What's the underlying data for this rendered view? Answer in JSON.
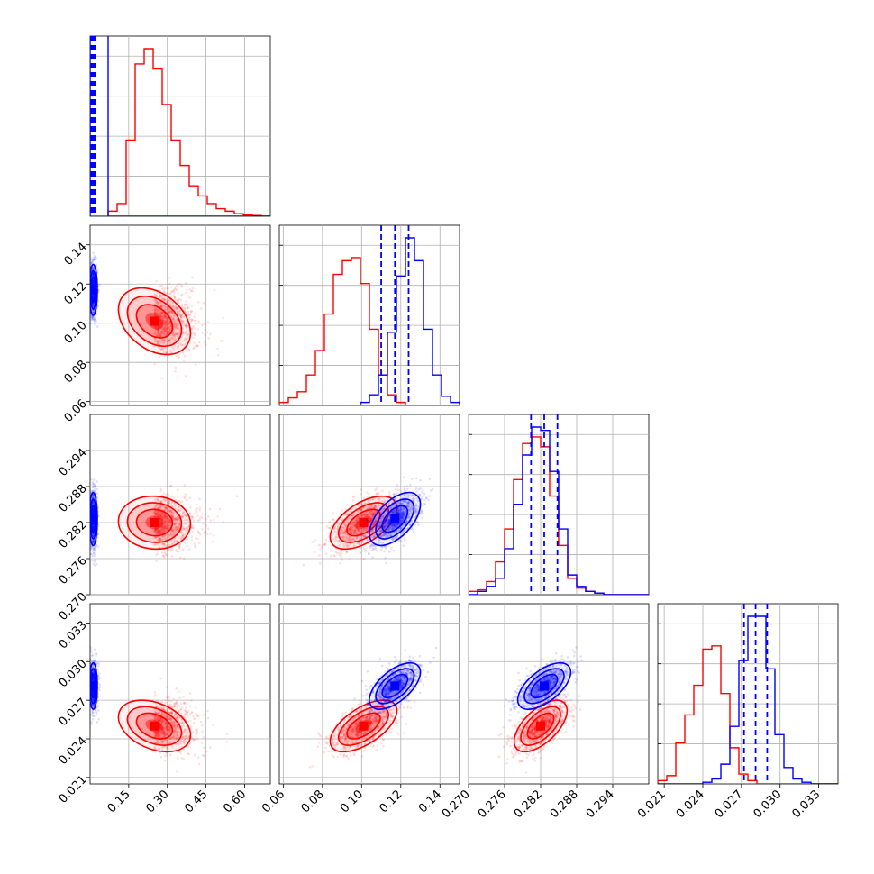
{
  "chart_data": {
    "type": "corner",
    "title": "",
    "parameters": [
      {
        "index": 0,
        "range": [
          0.0,
          0.7
        ],
        "ticks": [
          0.15,
          0.3,
          0.45,
          0.6
        ],
        "tick_labels": [
          "0.15",
          "0.30",
          "0.45",
          "0.60"
        ]
      },
      {
        "index": 1,
        "range": [
          0.058,
          0.15
        ],
        "ticks": [
          0.06,
          0.08,
          0.1,
          0.12,
          0.14
        ],
        "tick_labels": [
          "0.06",
          "0.08",
          "0.10",
          "0.12",
          "0.14"
        ]
      },
      {
        "index": 2,
        "range": [
          0.27,
          0.3
        ],
        "ticks": [
          0.27,
          0.276,
          0.282,
          0.288,
          0.294
        ],
        "tick_labels": [
          "0.270",
          "0.276",
          "0.282",
          "0.288",
          "0.294"
        ]
      },
      {
        "index": 3,
        "range": [
          0.0205,
          0.0345
        ],
        "ticks": [
          0.021,
          0.024,
          0.027,
          0.03,
          0.033
        ],
        "tick_labels": [
          "0.021",
          "0.024",
          "0.027",
          "0.030",
          "0.033"
        ]
      }
    ],
    "grid": true,
    "series": [
      {
        "color": "#ff0000",
        "means": [
          0.25,
          0.101,
          0.282,
          0.025
        ],
        "sigmas": [
          0.07,
          0.0085,
          0.0022,
          0.001
        ],
        "correlations": [
          [
            1,
            -0.35,
            -0.05,
            -0.35
          ],
          [
            -0.35,
            1,
            0.55,
            0.6
          ],
          [
            -0.05,
            0.55,
            1,
            0.6
          ],
          [
            -0.35,
            0.6,
            0.6,
            1
          ]
        ],
        "histograms": [
          {
            "bin_edges": [
              0.0,
              0.035,
              0.07,
              0.105,
              0.14,
              0.175,
              0.21,
              0.245,
              0.28,
              0.315,
              0.35,
              0.385,
              0.42,
              0.455,
              0.49,
              0.525,
              0.56,
              0.595,
              0.63,
              0.665,
              0.7
            ],
            "counts": [
              0,
              0,
              0.02,
              0.05,
              0.3,
              0.6,
              0.66,
              0.58,
              0.44,
              0.3,
              0.2,
              0.12,
              0.08,
              0.05,
              0.03,
              0.02,
              0.01,
              0.005,
              0.003,
              0.0
            ]
          },
          {
            "bin_edges": [
              0.058,
              0.0626,
              0.0672,
              0.0718,
              0.0764,
              0.081,
              0.0856,
              0.0902,
              0.0948,
              0.0994,
              0.104,
              0.1086,
              0.1132,
              0.1178,
              0.1224,
              0.127,
              0.1316,
              0.1362,
              0.1408,
              0.1454,
              0.15
            ],
            "counts": [
              0.02,
              0.05,
              0.09,
              0.2,
              0.36,
              0.6,
              0.86,
              0.95,
              0.97,
              0.8,
              0.5,
              0.2,
              0.07,
              0.02,
              0.0,
              0.0,
              0.0,
              0.0,
              0.0,
              0.0
            ]
          },
          {
            "bin_edges": [
              0.27,
              0.2715,
              0.273,
              0.2745,
              0.276,
              0.2775,
              0.279,
              0.2805,
              0.282,
              0.2835,
              0.285,
              0.2865,
              0.288,
              0.2895,
              0.291,
              0.2925,
              0.294,
              0.2955,
              0.297,
              0.2985,
              0.3
            ],
            "counts": [
              0.02,
              0.03,
              0.08,
              0.2,
              0.4,
              0.7,
              0.92,
              0.96,
              0.9,
              0.6,
              0.3,
              0.1,
              0.04,
              0.02,
              0.01,
              0.0,
              0.0,
              0.0,
              0.0,
              0.0
            ]
          },
          {
            "bin_edges": [
              0.0205,
              0.0212,
              0.0219,
              0.0226,
              0.0233,
              0.024,
              0.0247,
              0.0254,
              0.0261,
              0.0268,
              0.0275,
              0.0282,
              0.0289,
              0.0296,
              0.0303,
              0.031,
              0.0317,
              0.0324,
              0.0331,
              0.0338,
              0.0345
            ],
            "counts": [
              0.02,
              0.05,
              0.25,
              0.42,
              0.6,
              0.82,
              0.84,
              0.55,
              0.22,
              0.06,
              0.02,
              0.0,
              0.0,
              0.0,
              0.0,
              0.0,
              0.0,
              0.0,
              0.0,
              0.0
            ]
          }
        ]
      },
      {
        "color": "#0000ff",
        "means": [
          0.012,
          0.117,
          0.2826,
          0.0281
        ],
        "sigmas": [
          0.008,
          0.0065,
          0.0022,
          0.0009
        ],
        "correlations": [
          [
            1,
            0,
            0,
            0
          ],
          [
            0,
            1,
            0.55,
            0.6
          ],
          [
            0,
            0.55,
            1,
            0.6
          ],
          [
            0,
            0.6,
            0.6,
            1
          ]
        ],
        "quantiles": [
          [
            0.008,
            0.012,
            0.016
          ],
          [
            0.11,
            0.117,
            0.124
          ],
          [
            0.2804,
            0.2826,
            0.2848
          ],
          [
            0.0272,
            0.0281,
            0.029
          ]
        ],
        "histograms": [
          {
            "bin_edges": [
              0.0,
              0.035,
              0.07,
              0.105,
              0.14,
              0.175,
              0.21,
              0.245,
              0.28,
              0.315,
              0.35,
              0.385,
              0.42,
              0.455,
              0.49,
              0.525,
              0.56,
              0.595,
              0.63,
              0.665,
              0.7
            ],
            "counts": [
              3.7,
              0.82,
              0.0,
              0.0,
              0.0,
              0.0,
              0.0,
              0.0,
              0.0,
              0.0,
              0.0,
              0.0,
              0.0,
              0.0,
              0.0,
              0.0,
              0.0,
              0.0,
              0.0,
              0.0
            ]
          },
          {
            "bin_edges": [
              0.058,
              0.0626,
              0.0672,
              0.0718,
              0.0764,
              0.081,
              0.0856,
              0.0902,
              0.0948,
              0.0994,
              0.104,
              0.1086,
              0.1132,
              0.1178,
              0.1224,
              0.127,
              0.1316,
              0.1362,
              0.1408,
              0.1454,
              0.15
            ],
            "counts": [
              0,
              0,
              0,
              0,
              0,
              0,
              0,
              0,
              0,
              0.02,
              0.07,
              0.2,
              0.48,
              0.85,
              1.1,
              0.95,
              0.5,
              0.2,
              0.06,
              0.02
            ]
          },
          {
            "bin_edges": [
              0.27,
              0.2715,
              0.273,
              0.2745,
              0.276,
              0.2775,
              0.279,
              0.2805,
              0.282,
              0.2835,
              0.285,
              0.2865,
              0.288,
              0.2895,
              0.291,
              0.2925,
              0.294,
              0.2955,
              0.297,
              0.2985,
              0.3
            ],
            "counts": [
              0.0,
              0.02,
              0.05,
              0.1,
              0.28,
              0.55,
              0.85,
              1.02,
              1.0,
              0.75,
              0.4,
              0.12,
              0.05,
              0.02,
              0.01,
              0.0,
              0.0,
              0.0,
              0.0,
              0.0
            ]
          },
          {
            "bin_edges": [
              0.0205,
              0.0212,
              0.0219,
              0.0226,
              0.0233,
              0.024,
              0.0247,
              0.0254,
              0.0261,
              0.0268,
              0.0275,
              0.0282,
              0.0289,
              0.0296,
              0.0303,
              0.031,
              0.0317,
              0.0324,
              0.0331,
              0.0338,
              0.0345
            ],
            "counts": [
              0,
              0,
              0,
              0,
              0,
              0.01,
              0.03,
              0.12,
              0.35,
              0.75,
              1.02,
              1.02,
              0.7,
              0.3,
              0.1,
              0.03,
              0.01,
              0.0,
              0.0,
              0.0
            ]
          }
        ]
      }
    ]
  }
}
